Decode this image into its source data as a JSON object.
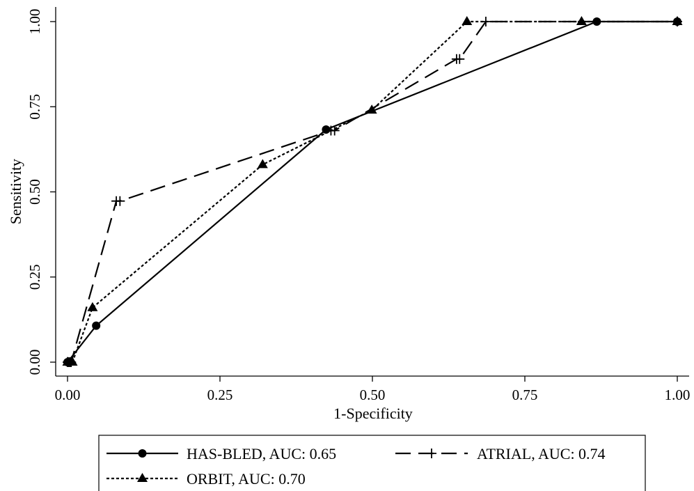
{
  "chart_data": {
    "type": "line",
    "xlabel": "1-Specificity",
    "ylabel": "Sensitivity",
    "xlim": [
      0,
      1
    ],
    "ylim": [
      0,
      1
    ],
    "xticks": [
      "0.00",
      "0.25",
      "0.50",
      "0.75",
      "1.00"
    ],
    "yticks": [
      "0.00",
      "0.25",
      "0.50",
      "0.75",
      "1.00"
    ],
    "xtick_values": [
      0,
      0.25,
      0.5,
      0.75,
      1
    ],
    "ytick_values": [
      0,
      0.25,
      0.5,
      0.75,
      1
    ],
    "grid": false,
    "legend_position": "bottom",
    "series": [
      {
        "name": "HAS-BLED, AUC: 0.65",
        "marker": "circle",
        "line": "solid",
        "x": [
          0,
          0.047,
          0.424,
          0.868,
          1.0
        ],
        "y": [
          0,
          0.107,
          0.683,
          1.0,
          1.0
        ]
      },
      {
        "name": "ATRIAL, AUC: 0.74",
        "marker": "plus",
        "line": "dashed",
        "x": [
          0,
          0.002,
          0.004,
          0.006,
          0.08,
          0.086,
          0.432,
          0.438,
          0.638,
          0.643,
          0.686,
          1.0
        ],
        "y": [
          0,
          0,
          0,
          0,
          0.473,
          0.473,
          0.68,
          0.68,
          0.89,
          0.89,
          1.0,
          1.0
        ]
      },
      {
        "name": "ORBIT, AUC: 0.70",
        "marker": "triangle",
        "line": "dotted",
        "x": [
          0,
          0.008,
          0.041,
          0.32,
          0.499,
          0.655,
          0.843,
          1.0
        ],
        "y": [
          0,
          0,
          0.16,
          0.58,
          0.74,
          1.0,
          1.0,
          1.0
        ]
      }
    ]
  }
}
